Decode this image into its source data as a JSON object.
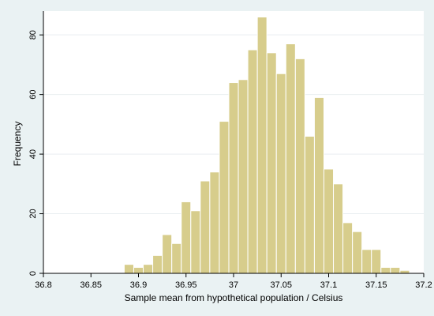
{
  "chart_data": {
    "type": "bar",
    "xlabel": "Sample mean from hypothetical population / Celsius",
    "ylabel": "Frequency",
    "xlim": [
      36.8,
      37.2
    ],
    "ylim": [
      0,
      88
    ],
    "xticks": [
      "36.8",
      "36.85",
      "36.9",
      "36.95",
      "37",
      "37.05",
      "37.1",
      "37.15",
      "37.2"
    ],
    "yticks": [
      "0",
      "20",
      "40",
      "60",
      "80"
    ],
    "grid": "horizontal",
    "bin_width": 0.01,
    "bins": [
      {
        "x": 36.89,
        "y": 3
      },
      {
        "x": 36.9,
        "y": 2
      },
      {
        "x": 36.91,
        "y": 3
      },
      {
        "x": 36.92,
        "y": 6
      },
      {
        "x": 36.93,
        "y": 13
      },
      {
        "x": 36.94,
        "y": 10
      },
      {
        "x": 36.95,
        "y": 24
      },
      {
        "x": 36.96,
        "y": 21
      },
      {
        "x": 36.97,
        "y": 31
      },
      {
        "x": 36.98,
        "y": 34
      },
      {
        "x": 36.99,
        "y": 51
      },
      {
        "x": 37.0,
        "y": 64
      },
      {
        "x": 37.01,
        "y": 65
      },
      {
        "x": 37.02,
        "y": 75
      },
      {
        "x": 37.03,
        "y": 86
      },
      {
        "x": 37.04,
        "y": 74
      },
      {
        "x": 37.05,
        "y": 67
      },
      {
        "x": 37.06,
        "y": 77
      },
      {
        "x": 37.07,
        "y": 72
      },
      {
        "x": 37.08,
        "y": 46
      },
      {
        "x": 37.09,
        "y": 59
      },
      {
        "x": 37.1,
        "y": 35
      },
      {
        "x": 37.11,
        "y": 30
      },
      {
        "x": 37.12,
        "y": 17
      },
      {
        "x": 37.13,
        "y": 14
      },
      {
        "x": 37.14,
        "y": 8
      },
      {
        "x": 37.15,
        "y": 8
      },
      {
        "x": 37.16,
        "y": 2
      },
      {
        "x": 37.17,
        "y": 2
      },
      {
        "x": 37.18,
        "y": 1
      }
    ]
  },
  "colors": {
    "background": "#eaf2f3",
    "plot_background": "#ffffff",
    "bar_fill": "#d7cd8c",
    "bar_stroke": "#ffffff",
    "grid": "#e9eef0",
    "axis": "#000000"
  }
}
